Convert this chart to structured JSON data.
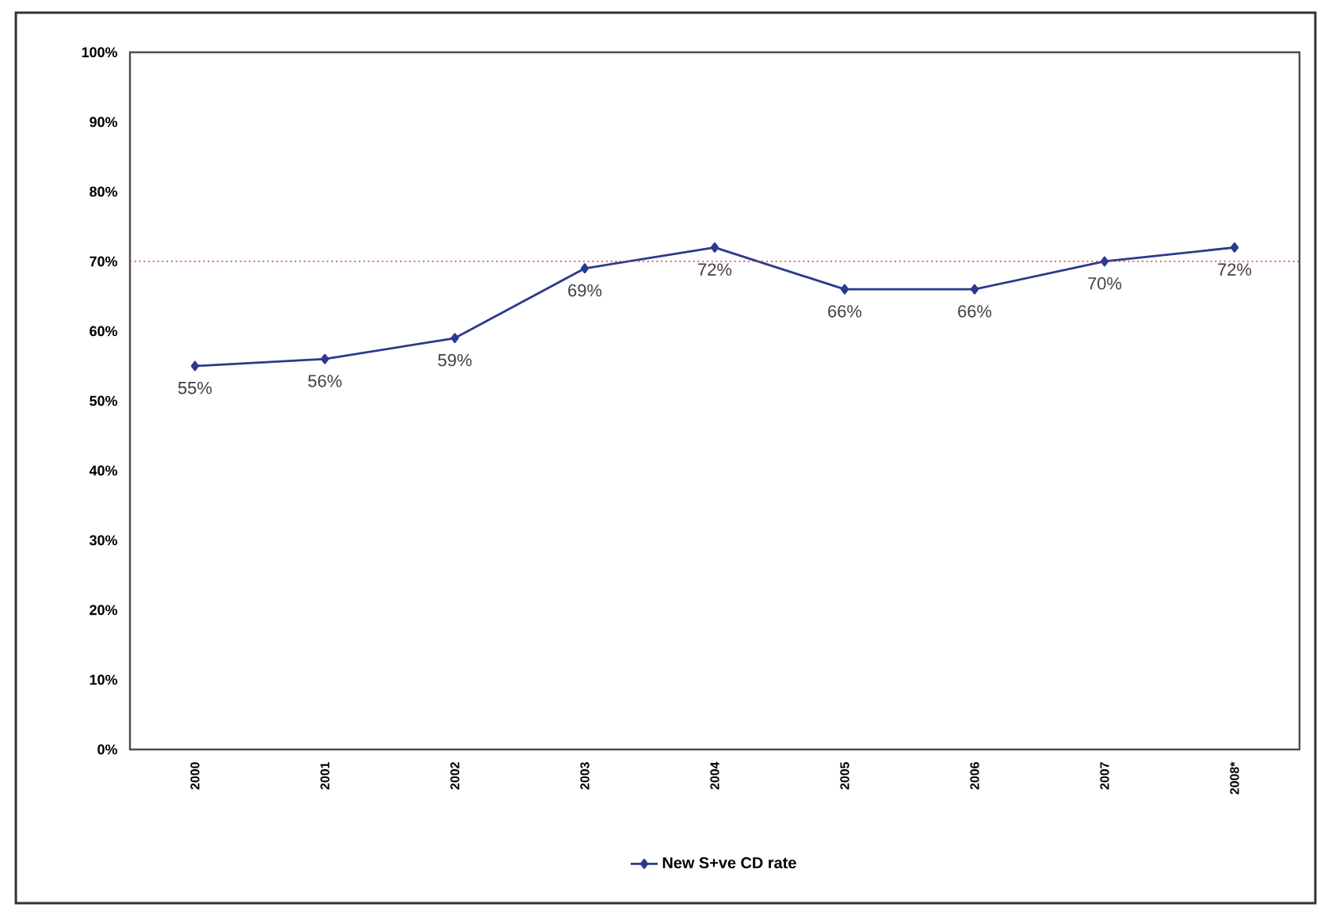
{
  "chart_data": {
    "type": "line",
    "categories": [
      "2000",
      "2001",
      "2002",
      "2003",
      "2004",
      "2005",
      "2006",
      "2007",
      "2008*"
    ],
    "series": [
      {
        "name": "New S+ve CD rate",
        "color": "#2b3a8c",
        "values": [
          55,
          56,
          59,
          69,
          72,
          66,
          66,
          70,
          72
        ],
        "value_labels": [
          "55%",
          "56%",
          "59%",
          "69%",
          "72%",
          "66%",
          "66%",
          "70%",
          "72%"
        ]
      }
    ],
    "ylim": [
      0,
      100
    ],
    "yticks": [
      {
        "value": 0,
        "label": "0%"
      },
      {
        "value": 10,
        "label": "10%"
      },
      {
        "value": 20,
        "label": "20%"
      },
      {
        "value": 30,
        "label": "30%"
      },
      {
        "value": 40,
        "label": "40%"
      },
      {
        "value": 50,
        "label": "50%"
      },
      {
        "value": 60,
        "label": "60%"
      },
      {
        "value": 70,
        "label": "70%"
      },
      {
        "value": 80,
        "label": "80%"
      },
      {
        "value": 90,
        "label": "90%"
      },
      {
        "value": 100,
        "label": "100%"
      }
    ],
    "ref_lines": [
      {
        "axis": "y",
        "value": 70,
        "color": "#e04040",
        "line_style": "dotted"
      }
    ],
    "marker": "diamond",
    "line_style": "solid",
    "legend": "bottom",
    "grid": false
  }
}
